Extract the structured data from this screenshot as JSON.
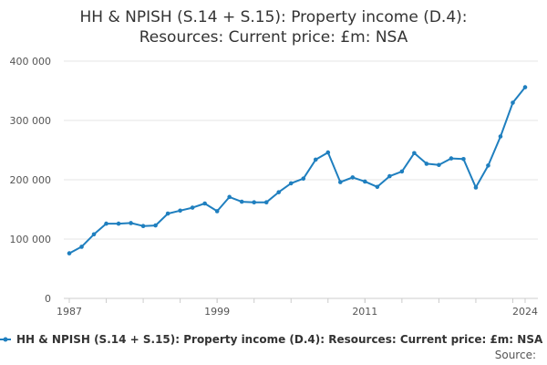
{
  "chart_data": {
    "type": "line",
    "title": "HH & NPISH (S.14 + S.15): Property income (D.4): Resources: Current price: £m: NSA",
    "title_lines": [
      "HH & NPISH (S.14 + S.15): Property income (D.4):",
      "Resources: Current price: £m: NSA"
    ],
    "xlabel": "",
    "ylabel": "",
    "x": [
      1987,
      1988,
      1989,
      1990,
      1991,
      1992,
      1993,
      1994,
      1995,
      1996,
      1997,
      1998,
      1999,
      2000,
      2001,
      2002,
      2003,
      2004,
      2005,
      2006,
      2007,
      2008,
      2009,
      2010,
      2011,
      2012,
      2013,
      2014,
      2015,
      2016,
      2017,
      2018,
      2019,
      2020,
      2021,
      2022,
      2023,
      2024
    ],
    "series": [
      {
        "name": "HH & NPISH (S.14 + S.15): Property income (D.4): Resources: Current price: £m: NSA",
        "values": [
          76000,
          87000,
          108000,
          126000,
          126000,
          127000,
          122000,
          123000,
          143000,
          148000,
          153000,
          160000,
          147000,
          171000,
          163000,
          162000,
          162000,
          179000,
          194000,
          202000,
          234000,
          246000,
          196000,
          204000,
          197000,
          188000,
          206000,
          214000,
          245000,
          227000,
          225000,
          236000,
          235000,
          187000,
          224000,
          273000,
          330000,
          356000
        ]
      }
    ],
    "xlim": [
      1987,
      2024
    ],
    "ylim": [
      0,
      400000
    ],
    "x_ticks": [
      1987,
      1999,
      2011,
      2024
    ],
    "x_tick_labels": [
      "1987",
      "1999",
      "2011",
      "2024"
    ],
    "y_ticks": [
      0,
      100000,
      200000,
      300000,
      400000
    ],
    "y_tick_labels": [
      "0",
      "100 000",
      "200 000",
      "300 000",
      "400 000"
    ],
    "grid": true,
    "legend_position": "bottom",
    "line_color": "#1f7fbf",
    "grid_color": "#e6e6e6",
    "source_label": "Source:"
  }
}
